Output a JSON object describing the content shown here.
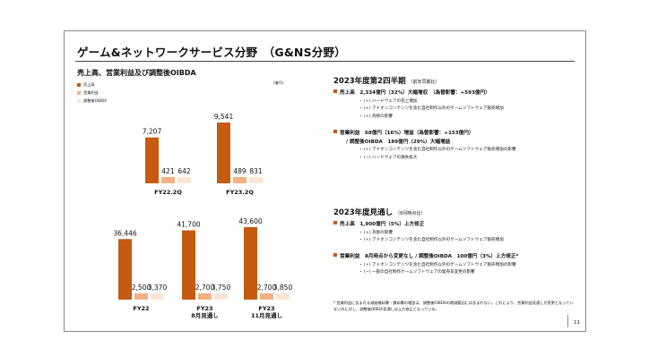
{
  "title": "ゲーム&ネットワークサービス分野　（G&NS分野）",
  "chart_section_title": "売上高、営業利益及び調整後OIBDA",
  "unit": "(億円)",
  "colors": {
    "sales": "#c55a11",
    "operating_income": "#f4b183",
    "adjusted_oibda": "#fbe5d6",
    "bullet": "#c55a11"
  },
  "chart_data": [
    {
      "type": "bar",
      "categories": [
        "FY22.2Q",
        "FY23.2Q"
      ],
      "series": [
        {
          "name": "売上高",
          "values": [
            7207,
            9541
          ]
        },
        {
          "name": "営業利益",
          "values": [
            421,
            489
          ]
        },
        {
          "name": "調整後OIBDA",
          "values": [
            642,
            831
          ]
        }
      ],
      "labels": [
        [
          "7,207",
          "421",
          "642"
        ],
        [
          "9,541",
          "489",
          "831"
        ]
      ]
    },
    {
      "type": "bar",
      "categories": [
        [
          "FY22"
        ],
        [
          "FY23",
          "8月見通し"
        ],
        [
          "FY23",
          "11月見通し"
        ]
      ],
      "series": [
        {
          "name": "売上高",
          "values": [
            36446,
            41700,
            43600
          ]
        },
        {
          "name": "営業利益",
          "values": [
            2500,
            2700,
            2700
          ]
        },
        {
          "name": "調整後OIBDA",
          "values": [
            3370,
            3750,
            3850
          ]
        }
      ],
      "labels": [
        [
          "36,446",
          "2,500",
          "3,370"
        ],
        [
          "41,700",
          "2,700",
          "3,750"
        ],
        [
          "43,600",
          "2,700",
          "3,850"
        ]
      ]
    }
  ],
  "right": {
    "q2": {
      "title": "2023年度第2四半期",
      "note": "（前年同期比）",
      "bullet1": "売上高　2,334億円（32%）大幅増収　（為替影響：+593億円）",
      "bullet1_subs": [
        "・ (+) ハードウェアの売上増加",
        "・ (+) アドオンコンテンツを含む自社制作以外のゲームソフトウェア販売増加",
        "・ (+) 為替の影響"
      ],
      "bullet2": "営業利益　68億円（16%）増益（為替影響：+153億円）",
      "bullet2_line2": "/ 調整後OIBDA　189億円（29%）大幅増益",
      "bullet2_subs": [
        "・ (+) アドオンコンテンツを含む自社制作以外のゲームソフトウェア販売増加の影響",
        "・ (−) ハードウェアの損失拡大"
      ]
    },
    "fy": {
      "title": "2023年度見通し",
      "note": "（8月時点比）",
      "bullet1": "売上高　1,900億円（5%）上方修正",
      "bullet1_subs": [
        "・ (+) 為替の影響",
        "・ (+) アドオンコンテンツを含む自社制作以外のゲームソフトウェア販売増加"
      ],
      "bullet2": "営業利益　8月時点から変更なし / 調整後OIBDA　100億円（3%）上方修正*",
      "bullet2_subs": [
        "・ (+) アドオンコンテンツを含む自社制作以外のゲームソフトウェア販売増加の影響",
        "・ (−) 一部の自社制作ゲームソフトウェアの発売日変更の影響"
      ]
    }
  },
  "footnote": "* 営業利益に含まれる減価償却費・償却費の増加は、調整後OIBDAの増減要因には含まれない。これにより、営業利益見通しが変更となっていないのに対し、調整後OIBDA見通しは上方修正となっている。",
  "page_number": "11"
}
